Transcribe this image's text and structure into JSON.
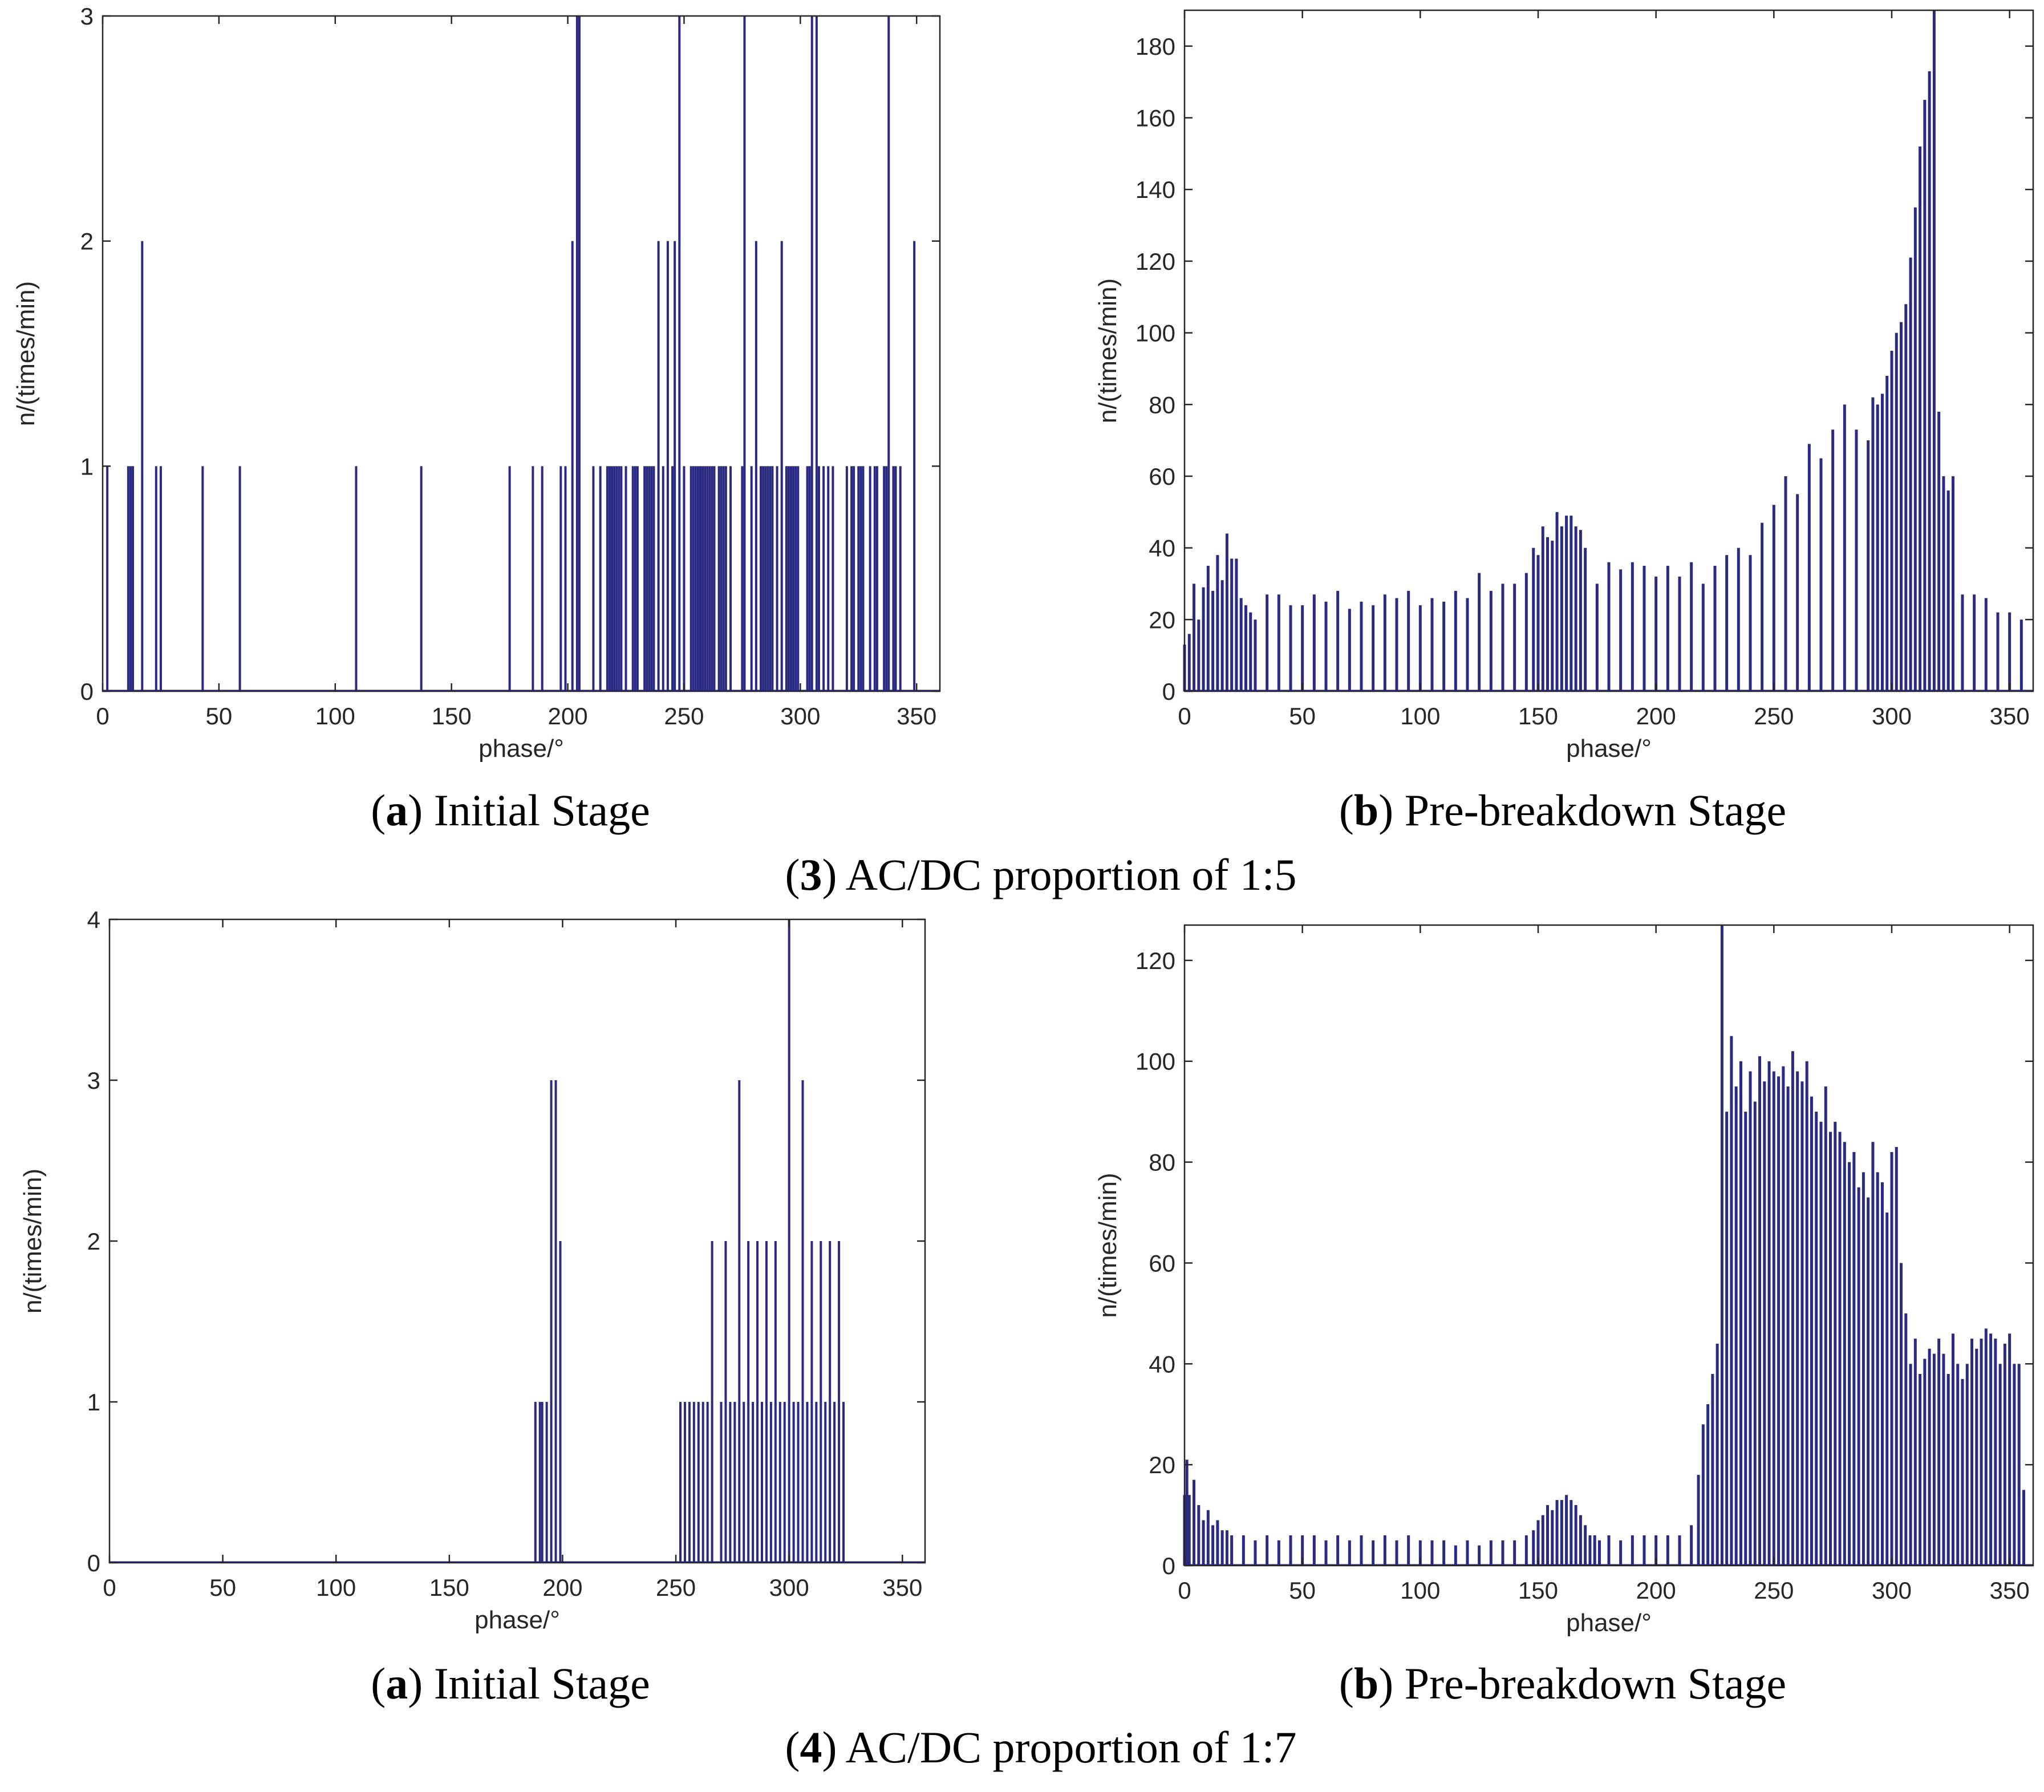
{
  "colors": {
    "bar": "#2b2a82",
    "axis": "#262626",
    "background": "#ffffff"
  },
  "figure_groups": [
    {
      "number": "3",
      "caption_rest": " AC/DC proportion of 1:5"
    },
    {
      "number": "4",
      "caption_rest": " AC/DC proportion of 1:7"
    }
  ],
  "chart_data": [
    {
      "id": "g3a",
      "type": "bar",
      "group": "3",
      "subcaption": {
        "letter": "a",
        "rest": " Initial Stage"
      },
      "xlabel": "phase/°",
      "ylabel": "n/(times/min)",
      "xlim": [
        0,
        360
      ],
      "ylim": [
        0,
        3
      ],
      "xticks": [
        "0",
        "50",
        "100",
        "150",
        "200",
        "250",
        "300",
        "350"
      ],
      "yticks": [
        "0",
        "1",
        "2",
        "3"
      ],
      "x": [
        2,
        11,
        12,
        13,
        17,
        23,
        25,
        43,
        59,
        109,
        137,
        175,
        185,
        189,
        197,
        199,
        202,
        204,
        205,
        211,
        214,
        217,
        218,
        219,
        220,
        221,
        222,
        223,
        225,
        228,
        229,
        230,
        233,
        234,
        235,
        236,
        237,
        239,
        241,
        243,
        245,
        246,
        248,
        250,
        253,
        254,
        255,
        256,
        257,
        258,
        259,
        260,
        261,
        262,
        263,
        265,
        266,
        267,
        268,
        270,
        275,
        276,
        279,
        281,
        283,
        284,
        285,
        286,
        287,
        288,
        290,
        292,
        294,
        295,
        296,
        297,
        298,
        299,
        303,
        304,
        305,
        307,
        308,
        310,
        312,
        314,
        320,
        322,
        323,
        325,
        326,
        327,
        330,
        332,
        333,
        336,
        337,
        338,
        340,
        341,
        343,
        349
      ],
      "values": [
        1,
        1,
        1,
        1,
        2,
        1,
        1,
        1,
        1,
        1,
        1,
        1,
        1,
        1,
        1,
        1,
        2,
        3,
        3,
        1,
        1,
        1,
        1,
        1,
        1,
        1,
        1,
        1,
        1,
        1,
        1,
        1,
        1,
        1,
        1,
        1,
        1,
        2,
        1,
        2,
        1,
        2,
        3,
        1,
        1,
        1,
        1,
        1,
        1,
        1,
        1,
        1,
        1,
        1,
        1,
        1,
        1,
        1,
        1,
        1,
        1,
        3,
        1,
        2,
        1,
        1,
        1,
        1,
        1,
        1,
        1,
        2,
        1,
        1,
        1,
        1,
        1,
        1,
        1,
        1,
        3,
        3,
        1,
        1,
        1,
        1,
        1,
        1,
        1,
        1,
        1,
        1,
        1,
        1,
        1,
        1,
        1,
        3,
        1,
        1,
        1,
        2
      ]
    },
    {
      "id": "g3b",
      "type": "bar",
      "group": "3",
      "subcaption": {
        "letter": "b",
        "rest": " Pre-breakdown Stage"
      },
      "xlabel": "phase/°",
      "ylabel": "n/(times/min)",
      "xlim": [
        0,
        360
      ],
      "ylim": [
        0,
        190
      ],
      "xticks": [
        "0",
        "50",
        "100",
        "150",
        "200",
        "250",
        "300",
        "350"
      ],
      "yticks": [
        "0",
        "20",
        "40",
        "60",
        "80",
        "100",
        "120",
        "140",
        "160",
        "180"
      ],
      "x": [
        0,
        2,
        4,
        6,
        8,
        10,
        12,
        14,
        16,
        18,
        20,
        22,
        24,
        26,
        28,
        30,
        35,
        40,
        45,
        50,
        55,
        60,
        65,
        70,
        75,
        80,
        85,
        90,
        95,
        100,
        105,
        110,
        115,
        120,
        125,
        130,
        135,
        140,
        145,
        148,
        150,
        152,
        154,
        156,
        158,
        160,
        162,
        164,
        166,
        168,
        170,
        175,
        180,
        185,
        190,
        195,
        200,
        205,
        210,
        215,
        220,
        225,
        230,
        235,
        240,
        245,
        250,
        255,
        260,
        265,
        270,
        275,
        280,
        285,
        290,
        292,
        294,
        296,
        298,
        300,
        302,
        304,
        306,
        308,
        310,
        312,
        314,
        316,
        318,
        320,
        322,
        324,
        326,
        330,
        335,
        340,
        345,
        350,
        355
      ],
      "values": [
        13,
        16,
        30,
        20,
        29,
        35,
        28,
        38,
        31,
        44,
        37,
        37,
        26,
        24,
        22,
        20,
        27,
        27,
        24,
        24,
        27,
        25,
        28,
        23,
        25,
        24,
        27,
        26,
        28,
        24,
        26,
        25,
        28,
        26,
        33,
        28,
        30,
        30,
        33,
        40,
        38,
        46,
        43,
        42,
        50,
        46,
        49,
        49,
        46,
        45,
        40,
        30,
        36,
        34,
        36,
        35,
        32,
        35,
        32,
        36,
        30,
        35,
        38,
        40,
        38,
        47,
        52,
        60,
        55,
        69,
        65,
        73,
        80,
        73,
        70,
        82,
        80,
        83,
        88,
        95,
        100,
        103,
        108,
        121,
        135,
        152,
        165,
        173,
        190,
        78,
        60,
        56,
        60,
        27,
        27,
        26,
        22,
        22,
        20
      ]
    },
    {
      "id": "g4a",
      "type": "bar",
      "group": "4",
      "subcaption": {
        "letter": "a",
        "rest": " Initial Stage"
      },
      "xlabel": "phase/°",
      "ylabel": "n/(times/min)",
      "xlim": [
        0,
        360
      ],
      "ylim": [
        0,
        4
      ],
      "xticks": [
        "0",
        "50",
        "100",
        "150",
        "200",
        "250",
        "300",
        "350"
      ],
      "yticks": [
        "0",
        "1",
        "2",
        "3",
        "4"
      ],
      "x": [
        188,
        190,
        191,
        193,
        195,
        197,
        199,
        252,
        254,
        256,
        258,
        260,
        262,
        264,
        266,
        270,
        272,
        274,
        276,
        278,
        280,
        282,
        284,
        286,
        288,
        290,
        292,
        294,
        296,
        298,
        300,
        302,
        304,
        306,
        308,
        310,
        312,
        314,
        316,
        318,
        320,
        322,
        324
      ],
      "values": [
        1,
        1,
        1,
        1,
        3,
        3,
        2,
        1,
        1,
        1,
        1,
        1,
        1,
        1,
        2,
        1,
        2,
        1,
        1,
        3,
        1,
        2,
        1,
        2,
        1,
        2,
        1,
        2,
        1,
        1,
        4,
        1,
        1,
        3,
        1,
        2,
        1,
        2,
        1,
        2,
        1,
        2,
        1
      ]
    },
    {
      "id": "g4b",
      "type": "bar",
      "group": "4",
      "subcaption": {
        "letter": "b",
        "rest": " Pre-breakdown Stage"
      },
      "xlabel": "phase/°",
      "ylabel": "n/(times/min)",
      "xlim": [
        0,
        360
      ],
      "ylim": [
        0,
        127
      ],
      "xticks": [
        "0",
        "50",
        "100",
        "150",
        "200",
        "250",
        "300",
        "350"
      ],
      "yticks": [
        "0",
        "20",
        "40",
        "60",
        "80",
        "100",
        "120"
      ],
      "x": [
        0,
        1,
        2,
        4,
        6,
        8,
        10,
        12,
        14,
        16,
        18,
        20,
        25,
        30,
        35,
        40,
        45,
        50,
        55,
        60,
        65,
        70,
        75,
        80,
        85,
        90,
        95,
        100,
        105,
        110,
        115,
        120,
        125,
        130,
        135,
        140,
        145,
        148,
        150,
        152,
        154,
        156,
        158,
        160,
        162,
        164,
        166,
        168,
        170,
        172,
        174,
        176,
        180,
        185,
        190,
        195,
        200,
        205,
        210,
        215,
        218,
        220,
        222,
        224,
        226,
        228,
        230,
        232,
        234,
        236,
        238,
        240,
        242,
        244,
        246,
        248,
        250,
        252,
        254,
        256,
        258,
        260,
        262,
        264,
        266,
        268,
        270,
        272,
        274,
        276,
        278,
        280,
        282,
        284,
        286,
        288,
        290,
        292,
        294,
        296,
        298,
        300,
        302,
        304,
        306,
        308,
        310,
        312,
        314,
        316,
        318,
        320,
        322,
        324,
        326,
        328,
        330,
        332,
        334,
        336,
        338,
        340,
        342,
        344,
        346,
        348,
        350,
        352,
        354,
        356
      ],
      "values": [
        14,
        21,
        14,
        17,
        12,
        9,
        11,
        8,
        9,
        7,
        7,
        6,
        6,
        5,
        6,
        5,
        6,
        6,
        6,
        5,
        6,
        5,
        6,
        5,
        6,
        5,
        6,
        5,
        5,
        5,
        4,
        5,
        4,
        5,
        5,
        5,
        6,
        7,
        9,
        10,
        12,
        11,
        13,
        13,
        14,
        13,
        12,
        10,
        8,
        6,
        6,
        5,
        6,
        5,
        6,
        6,
        6,
        6,
        6,
        8,
        18,
        28,
        32,
        38,
        44,
        127,
        90,
        105,
        95,
        100,
        90,
        98,
        92,
        101,
        96,
        100,
        98,
        97,
        99,
        95,
        102,
        98,
        96,
        100,
        93,
        90,
        88,
        95,
        86,
        88,
        86,
        84,
        80,
        82,
        75,
        78,
        73,
        84,
        78,
        76,
        70,
        82,
        83,
        60,
        50,
        40,
        45,
        38,
        41,
        43,
        42,
        45,
        42,
        38,
        46,
        40,
        37,
        40,
        45,
        43,
        45,
        47,
        46,
        45,
        40,
        44,
        46,
        40,
        40,
        15
      ]
    }
  ]
}
